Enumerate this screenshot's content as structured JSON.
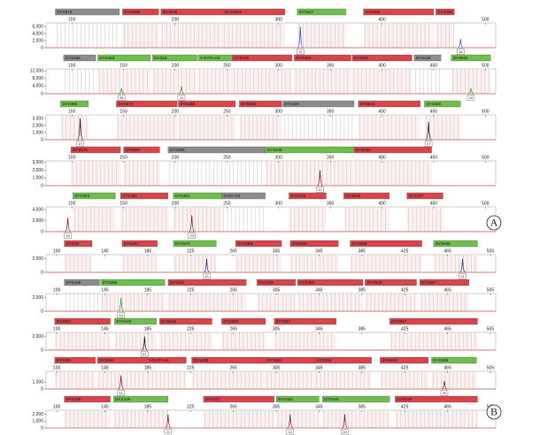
{
  "chart_data": [
    {
      "type": "electropherogram",
      "xlim": [
        75,
        510
      ],
      "xticks": [
        100,
        200,
        300,
        400,
        500
      ],
      "ylim": [
        0,
        7000
      ],
      "yticks": [
        0,
        {
          "value": 2000,
          "label": "2,000"
        },
        {
          "value": 4000,
          "label": "4,000"
        },
        {
          "value": 6000,
          "label": "6,000"
        }
      ],
      "loci": [
        {
          "name": "DYS576",
          "color": "#8c8c8c",
          "start": 84,
          "end": 146
        },
        {
          "name": "DYS389I",
          "color": "#d9434a",
          "start": 149,
          "end": 184
        },
        {
          "name": "DYS635",
          "color": "#d9434a",
          "start": 186,
          "end": 246
        },
        {
          "name": "DYS389II",
          "color": "#d9434a",
          "start": 246,
          "end": 306
        },
        {
          "name": "DYS627",
          "color": "#6cbf4a",
          "start": 318,
          "end": 365
        },
        {
          "name": "DYS460",
          "color": "#d9434a",
          "start": 382,
          "end": 450
        },
        {
          "name": "DYS458",
          "color": "#d9434a",
          "start": 452,
          "end": 470
        }
      ],
      "peaks": [
        {
          "x": 321,
          "height": 6000,
          "label": "13",
          "color": "#3b4cc0"
        },
        {
          "x": 476,
          "height": 2500,
          "label": "16",
          "color": "#3b4cc0"
        }
      ]
    },
    {
      "type": "electropherogram",
      "xlim": [
        75,
        510
      ],
      "xticks": [
        100,
        150,
        200,
        250,
        300,
        350,
        400,
        450,
        500
      ],
      "ylim": [
        0,
        13000
      ],
      "yticks": [
        0,
        {
          "value": 4000,
          "label": "4,000"
        },
        {
          "value": 8000,
          "label": "8,000"
        },
        {
          "value": 12000,
          "label": "12,000"
        }
      ],
      "loci": [
        {
          "name": "DYS488",
          "color": "#8c8c8c",
          "start": 92,
          "end": 123
        },
        {
          "name": "DYS448",
          "color": "#6cbf4a",
          "start": 125,
          "end": 176
        },
        {
          "name": "DYS19",
          "color": "#6cbf4a",
          "start": 178,
          "end": 221
        },
        {
          "name": "Y-GATA-H4",
          "color": "#6cbf4a",
          "start": 222,
          "end": 255
        },
        {
          "name": "DYS449",
          "color": "#d9434a",
          "start": 255,
          "end": 313
        },
        {
          "name": "DYS393",
          "color": "#d9434a",
          "start": 315,
          "end": 370
        },
        {
          "name": "DYS391",
          "color": "#d9434a",
          "start": 371,
          "end": 429
        },
        {
          "name": "DYS439",
          "color": "#8c8c8c",
          "start": 431,
          "end": 457
        },
        {
          "name": "DYS522",
          "color": "#6cbf4a",
          "start": 467,
          "end": 505
        }
      ],
      "peaks": [
        {
          "x": 148,
          "height": 3000,
          "label": "28",
          "color": "#3a9a3a"
        },
        {
          "x": 206,
          "height": 4000,
          "label": "11",
          "color": "#3a9a3a"
        },
        {
          "x": 486,
          "height": 3000,
          "label": "19",
          "color": "#3a9a3a"
        }
      ]
    },
    {
      "type": "electropherogram",
      "xlim": [
        75,
        510
      ],
      "xticks": [
        100,
        150,
        200,
        250,
        300,
        350,
        400,
        450,
        500
      ],
      "ylim": [
        0,
        3500
      ],
      "yticks": [
        0,
        {
          "value": 1000,
          "label": "1,000"
        },
        {
          "value": 2000,
          "label": "2,000"
        },
        {
          "value": 3000,
          "label": "3,000"
        }
      ],
      "loci": [
        {
          "name": "DYS456",
          "color": "#6cbf4a",
          "start": 89,
          "end": 116
        },
        {
          "name": "DYS570",
          "color": "#d9434a",
          "start": 143,
          "end": 202
        },
        {
          "name": "DYS459",
          "color": "#d9434a",
          "start": 203,
          "end": 258
        },
        {
          "name": "DYS533",
          "color": "#d9434a",
          "start": 262,
          "end": 303
        },
        {
          "name": "DYS390",
          "color": "#8c8c8c",
          "start": 304,
          "end": 373
        },
        {
          "name": "DYS643",
          "color": "#d9434a",
          "start": 377,
          "end": 437
        },
        {
          "name": "DYS385",
          "color": "#6cbf4a",
          "start": 441,
          "end": 476
        }
      ],
      "peaks": [
        {
          "x": 108,
          "height": 3000,
          "label": "10",
          "color": "#111111"
        },
        {
          "x": 445,
          "height": 2500,
          "label": "17",
          "color": "#111111"
        }
      ]
    },
    {
      "type": "electropherogram",
      "xlim": [
        75,
        510
      ],
      "xticks": [
        100,
        150,
        200,
        250,
        300,
        350,
        400,
        450,
        500
      ],
      "ylim": [
        0,
        3200
      ],
      "yticks": [
        0,
        {
          "value": 1000,
          "label": "1,000"
        },
        {
          "value": 2000,
          "label": "2,000"
        },
        {
          "value": 3000,
          "label": "3,000"
        }
      ],
      "loci": [
        {
          "name": "DYS576",
          "color": "#d9434a",
          "start": 99,
          "end": 147
        },
        {
          "name": "DYS587",
          "color": "#d9434a",
          "start": 150,
          "end": 185
        },
        {
          "name": "DYS385",
          "color": "#8c8c8c",
          "start": 193,
          "end": 287
        },
        {
          "name": "DYS449",
          "color": "#6cbf4a",
          "start": 287,
          "end": 373
        },
        {
          "name": "DYS533",
          "color": "#d9434a",
          "start": 373,
          "end": 448
        }
      ],
      "peaks": [
        {
          "x": 340,
          "height": 2000,
          "label": "12",
          "color": "#8b1a1a"
        }
      ]
    },
    {
      "type": "electropherogram",
      "xlim": [
        75,
        510
      ],
      "xticks": [
        100,
        150,
        200,
        250,
        300,
        350,
        400,
        450,
        500
      ],
      "ylim": [
        0,
        4500
      ],
      "yticks": [
        0,
        {
          "value": 2000,
          "label": "2,000"
        },
        {
          "value": 4000,
          "label": "4,000"
        }
      ],
      "loci": [
        {
          "name": "DYS393",
          "color": "#6cbf4a",
          "start": 101,
          "end": 142
        },
        {
          "name": "DYS456",
          "color": "#d9434a",
          "start": 147,
          "end": 193
        },
        {
          "name": "DYS481",
          "color": "#6cbf4a",
          "start": 198,
          "end": 245
        },
        {
          "name": "GATA-H4",
          "color": "#8c8c8c",
          "start": 245,
          "end": 287
        },
        {
          "name": "DYS439",
          "color": "#d9434a",
          "start": 310,
          "end": 346
        },
        {
          "name": "DYS549",
          "color": "#d9434a",
          "start": 363,
          "end": 407
        },
        {
          "name": "DYS437",
          "color": "#d9434a",
          "start": 424,
          "end": 459
        }
      ],
      "peaks": [
        {
          "x": 96,
          "height": 2500,
          "label": "15",
          "color": "#8b1a1a"
        },
        {
          "x": 216,
          "height": 3000,
          "label": "23",
          "color": "#8b1a1a"
        }
      ],
      "panel_label": "A"
    },
    {
      "type": "electropherogram",
      "xlim": [
        90,
        510
      ],
      "xticks": [
        100,
        145,
        185,
        225,
        265,
        305,
        345,
        385,
        425,
        465,
        505
      ],
      "ylim": [
        0,
        2600
      ],
      "yticks": [
        0,
        {
          "value": 2000,
          "label": "2,000"
        }
      ],
      "loci": [
        {
          "name": "DYS19",
          "color": "#d9434a",
          "start": 107,
          "end": 133
        },
        {
          "name": "DYS391",
          "color": "#d9434a",
          "start": 161,
          "end": 194
        },
        {
          "name": "DYS570",
          "color": "#6cbf4a",
          "start": 209,
          "end": 249
        },
        {
          "name": "DYS389I",
          "color": "#d9434a",
          "start": 267,
          "end": 310
        },
        {
          "name": "DYS438",
          "color": "#d9434a",
          "start": 318,
          "end": 363
        },
        {
          "name": "DYS390",
          "color": "#d9434a",
          "start": 374,
          "end": 441
        },
        {
          "name": "DYS635",
          "color": "#6cbf4a",
          "start": 452,
          "end": 493
        }
      ],
      "peaks": [
        {
          "x": 240,
          "height": 2000,
          "label": "13",
          "color": "#1f2d8a"
        },
        {
          "x": 479,
          "height": 2000,
          "label": "21",
          "color": "#1f2d8a"
        }
      ]
    },
    {
      "type": "electropherogram",
      "xlim": [
        90,
        510
      ],
      "xticks": [
        100,
        145,
        185,
        225,
        265,
        305,
        345,
        385,
        425,
        465,
        505
      ],
      "ylim": [
        0,
        2600
      ],
      "yticks": [
        0,
        {
          "value": 2000,
          "label": "2,000"
        }
      ],
      "loci": [
        {
          "name": "DYS448",
          "color": "#8c8c8c",
          "start": 107,
          "end": 140
        },
        {
          "name": "DYS385",
          "color": "#6cbf4a",
          "start": 141,
          "end": 201
        },
        {
          "name": "DYS481",
          "color": "#d9434a",
          "start": 204,
          "end": 277
        },
        {
          "name": "DYS460",
          "color": "#d9434a",
          "start": 287,
          "end": 323
        },
        {
          "name": "DYS456",
          "color": "#d9434a",
          "start": 325,
          "end": 386
        },
        {
          "name": "DYS533",
          "color": "#d9434a",
          "start": 388,
          "end": 436
        },
        {
          "name": "DYS557",
          "color": "#d9434a",
          "start": 439,
          "end": 485
        }
      ],
      "peaks": [
        {
          "x": 160,
          "height": 2000,
          "label": "14",
          "color": "#3a9a3a"
        }
      ]
    },
    {
      "type": "electropherogram",
      "xlim": [
        90,
        510
      ],
      "xticks": [
        100,
        145,
        185,
        225,
        265,
        305,
        345,
        385,
        425,
        465,
        505
      ],
      "ylim": [
        0,
        2600
      ],
      "yticks": [
        0,
        {
          "value": 2000,
          "label": "2,000"
        }
      ],
      "loci": [
        {
          "name": "DYS587",
          "color": "#d9434a",
          "start": 98,
          "end": 150
        },
        {
          "name": "DYS449",
          "color": "#6cbf4a",
          "start": 154,
          "end": 193
        },
        {
          "name": "DYS518",
          "color": "#d9434a",
          "start": 196,
          "end": 245
        },
        {
          "name": "DYS392",
          "color": "#d9434a",
          "start": 254,
          "end": 295
        },
        {
          "name": "DYS627",
          "color": "#d9434a",
          "start": 303,
          "end": 361
        },
        {
          "name": "DYS527",
          "color": "#d9434a",
          "start": 411,
          "end": 493
        }
      ],
      "peaks": [
        {
          "x": 182,
          "height": 2000,
          "label": "21",
          "color": "#111111"
        }
      ]
    },
    {
      "type": "electropherogram",
      "xlim": [
        90,
        510
      ],
      "xticks": [
        100,
        145,
        185,
        225,
        265,
        305,
        345,
        385,
        425,
        465,
        505
      ],
      "ylim": [
        0,
        2600
      ],
      "yticks": [
        0,
        {
          "value": 1000,
          "label": "1,000"
        }
      ],
      "loci": [
        {
          "name": "DYS391",
          "color": "#d9434a",
          "start": 98,
          "end": 136
        },
        {
          "name": "DYS393",
          "color": "#d9434a",
          "start": 138,
          "end": 184
        },
        {
          "name": "Y-GATA-H4",
          "color": "#d9434a",
          "start": 184,
          "end": 221
        },
        {
          "name": "DYS438",
          "color": "#d9434a",
          "start": 226,
          "end": 295
        },
        {
          "name": "DYS522",
          "color": "#d9434a",
          "start": 295,
          "end": 341
        },
        {
          "name": "DYS458",
          "color": "#d9434a",
          "start": 341,
          "end": 394
        },
        {
          "name": "DYS643",
          "color": "#d9434a",
          "start": 402,
          "end": 447
        },
        {
          "name": "DYS388",
          "color": "#6cbf4a",
          "start": 450,
          "end": 492
        }
      ],
      "peaks": [
        {
          "x": 160,
          "height": 2000,
          "label": "11",
          "color": "#8b1a1a"
        },
        {
          "x": 462,
          "height": 1200,
          "label": "20",
          "color": "#8b1a1a"
        }
      ]
    },
    {
      "type": "electropherogram",
      "xlim": [
        90,
        510
      ],
      "xticks": [
        100,
        145,
        185,
        225,
        265,
        305,
        345,
        385,
        425,
        465,
        505
      ],
      "ylim": [
        0,
        2600
      ],
      "yticks": [
        0,
        {
          "value": 1000,
          "label": "1,000"
        },
        {
          "value": 2000,
          "label": "2,000"
        }
      ],
      "loci": [
        {
          "name": "DYS438",
          "color": "#d9434a",
          "start": 107,
          "end": 150
        },
        {
          "name": "DYS439",
          "color": "#6cbf4a",
          "start": 153,
          "end": 204
        },
        {
          "name": "DYS437",
          "color": "#d9434a",
          "start": 237,
          "end": 303
        },
        {
          "name": "DYS462",
          "color": "#6cbf4a",
          "start": 305,
          "end": 345
        },
        {
          "name": "DYS449",
          "color": "#6cbf4a",
          "start": 348,
          "end": 411
        },
        {
          "name": "DYS518",
          "color": "#d9434a",
          "start": 416,
          "end": 493
        }
      ],
      "peaks": [
        {
          "x": 204,
          "height": 2000,
          "label": "21",
          "color": "#8b1a1a"
        },
        {
          "x": 318,
          "height": 2000,
          "label": "12",
          "color": "#8b1a1a"
        },
        {
          "x": 369,
          "height": 2000,
          "label": "20",
          "color": "#8b1a1a"
        }
      ],
      "panel_label": "B"
    }
  ]
}
